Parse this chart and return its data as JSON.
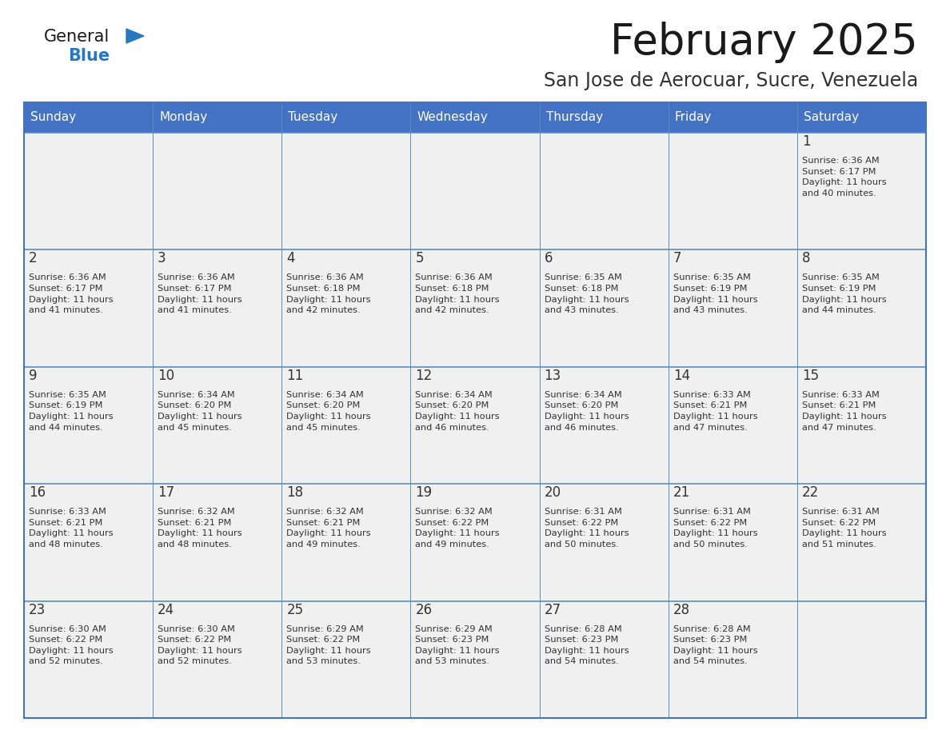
{
  "title": "February 2025",
  "subtitle": "San Jose de Aerocuar, Sucre, Venezuela",
  "header_bg_color": "#4472C4",
  "header_text_color": "#FFFFFF",
  "cell_bg_color": "#F0F0F0",
  "border_color": "#4472C4",
  "row_line_color": "#5B8DB8",
  "title_color": "#1a1a1a",
  "subtitle_color": "#333333",
  "day_number_color": "#333333",
  "cell_text_color": "#333333",
  "days_of_week": [
    "Sunday",
    "Monday",
    "Tuesday",
    "Wednesday",
    "Thursday",
    "Friday",
    "Saturday"
  ],
  "weeks": [
    [
      {
        "day": null,
        "info": null
      },
      {
        "day": null,
        "info": null
      },
      {
        "day": null,
        "info": null
      },
      {
        "day": null,
        "info": null
      },
      {
        "day": null,
        "info": null
      },
      {
        "day": null,
        "info": null
      },
      {
        "day": 1,
        "info": "Sunrise: 6:36 AM\nSunset: 6:17 PM\nDaylight: 11 hours\nand 40 minutes."
      }
    ],
    [
      {
        "day": 2,
        "info": "Sunrise: 6:36 AM\nSunset: 6:17 PM\nDaylight: 11 hours\nand 41 minutes."
      },
      {
        "day": 3,
        "info": "Sunrise: 6:36 AM\nSunset: 6:17 PM\nDaylight: 11 hours\nand 41 minutes."
      },
      {
        "day": 4,
        "info": "Sunrise: 6:36 AM\nSunset: 6:18 PM\nDaylight: 11 hours\nand 42 minutes."
      },
      {
        "day": 5,
        "info": "Sunrise: 6:36 AM\nSunset: 6:18 PM\nDaylight: 11 hours\nand 42 minutes."
      },
      {
        "day": 6,
        "info": "Sunrise: 6:35 AM\nSunset: 6:18 PM\nDaylight: 11 hours\nand 43 minutes."
      },
      {
        "day": 7,
        "info": "Sunrise: 6:35 AM\nSunset: 6:19 PM\nDaylight: 11 hours\nand 43 minutes."
      },
      {
        "day": 8,
        "info": "Sunrise: 6:35 AM\nSunset: 6:19 PM\nDaylight: 11 hours\nand 44 minutes."
      }
    ],
    [
      {
        "day": 9,
        "info": "Sunrise: 6:35 AM\nSunset: 6:19 PM\nDaylight: 11 hours\nand 44 minutes."
      },
      {
        "day": 10,
        "info": "Sunrise: 6:34 AM\nSunset: 6:20 PM\nDaylight: 11 hours\nand 45 minutes."
      },
      {
        "day": 11,
        "info": "Sunrise: 6:34 AM\nSunset: 6:20 PM\nDaylight: 11 hours\nand 45 minutes."
      },
      {
        "day": 12,
        "info": "Sunrise: 6:34 AM\nSunset: 6:20 PM\nDaylight: 11 hours\nand 46 minutes."
      },
      {
        "day": 13,
        "info": "Sunrise: 6:34 AM\nSunset: 6:20 PM\nDaylight: 11 hours\nand 46 minutes."
      },
      {
        "day": 14,
        "info": "Sunrise: 6:33 AM\nSunset: 6:21 PM\nDaylight: 11 hours\nand 47 minutes."
      },
      {
        "day": 15,
        "info": "Sunrise: 6:33 AM\nSunset: 6:21 PM\nDaylight: 11 hours\nand 47 minutes."
      }
    ],
    [
      {
        "day": 16,
        "info": "Sunrise: 6:33 AM\nSunset: 6:21 PM\nDaylight: 11 hours\nand 48 minutes."
      },
      {
        "day": 17,
        "info": "Sunrise: 6:32 AM\nSunset: 6:21 PM\nDaylight: 11 hours\nand 48 minutes."
      },
      {
        "day": 18,
        "info": "Sunrise: 6:32 AM\nSunset: 6:21 PM\nDaylight: 11 hours\nand 49 minutes."
      },
      {
        "day": 19,
        "info": "Sunrise: 6:32 AM\nSunset: 6:22 PM\nDaylight: 11 hours\nand 49 minutes."
      },
      {
        "day": 20,
        "info": "Sunrise: 6:31 AM\nSunset: 6:22 PM\nDaylight: 11 hours\nand 50 minutes."
      },
      {
        "day": 21,
        "info": "Sunrise: 6:31 AM\nSunset: 6:22 PM\nDaylight: 11 hours\nand 50 minutes."
      },
      {
        "day": 22,
        "info": "Sunrise: 6:31 AM\nSunset: 6:22 PM\nDaylight: 11 hours\nand 51 minutes."
      }
    ],
    [
      {
        "day": 23,
        "info": "Sunrise: 6:30 AM\nSunset: 6:22 PM\nDaylight: 11 hours\nand 52 minutes."
      },
      {
        "day": 24,
        "info": "Sunrise: 6:30 AM\nSunset: 6:22 PM\nDaylight: 11 hours\nand 52 minutes."
      },
      {
        "day": 25,
        "info": "Sunrise: 6:29 AM\nSunset: 6:22 PM\nDaylight: 11 hours\nand 53 minutes."
      },
      {
        "day": 26,
        "info": "Sunrise: 6:29 AM\nSunset: 6:23 PM\nDaylight: 11 hours\nand 53 minutes."
      },
      {
        "day": 27,
        "info": "Sunrise: 6:28 AM\nSunset: 6:23 PM\nDaylight: 11 hours\nand 54 minutes."
      },
      {
        "day": 28,
        "info": "Sunrise: 6:28 AM\nSunset: 6:23 PM\nDaylight: 11 hours\nand 54 minutes."
      },
      {
        "day": null,
        "info": null
      }
    ]
  ],
  "logo_color_general": "#1a1a1a",
  "logo_color_blue": "#2878C0",
  "logo_triangle_color": "#2878C0",
  "fig_width": 11.88,
  "fig_height": 9.18,
  "dpi": 100
}
